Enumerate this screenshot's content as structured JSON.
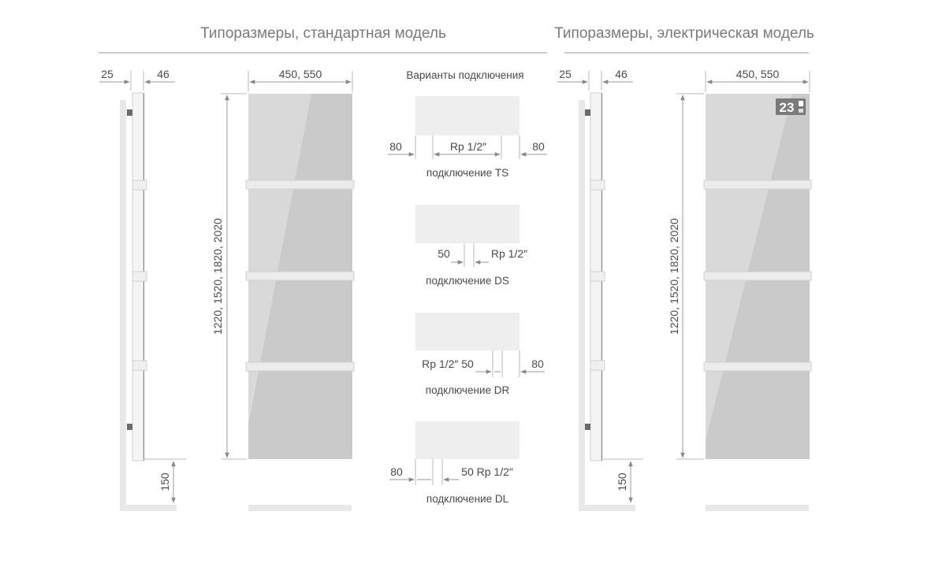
{
  "titles": {
    "standard": "Типоразмеры, стандартная модель",
    "electric": "Типоразмеры, электрическая модель"
  },
  "side_view": {
    "left_dim": "25",
    "right_dim": "46",
    "floor_dim": "150"
  },
  "front_view": {
    "width_dim": "450, 550",
    "height_dim": "1220, 1520, 1820, 2020"
  },
  "connections": {
    "heading": "Варианты подключения",
    "ts": {
      "left": "80",
      "mid": "Rp 1/2″",
      "right": "80",
      "caption": "подключение TS"
    },
    "ds": {
      "left": "50",
      "right": "Rp 1/2″",
      "caption": "подключение DS"
    },
    "dr": {
      "left": "Rp 1/2″ 50",
      "right": "80",
      "caption": "подключение DR"
    },
    "dl": {
      "left": "80",
      "right": "50 Rp 1/2″",
      "caption": "подключение DL"
    }
  },
  "thermostat_display": "23",
  "colors": {
    "panel": "#cccccc",
    "panel_light": "#d9d9d9",
    "bar": "#e6e6e6",
    "line": "#9a9a9a"
  }
}
